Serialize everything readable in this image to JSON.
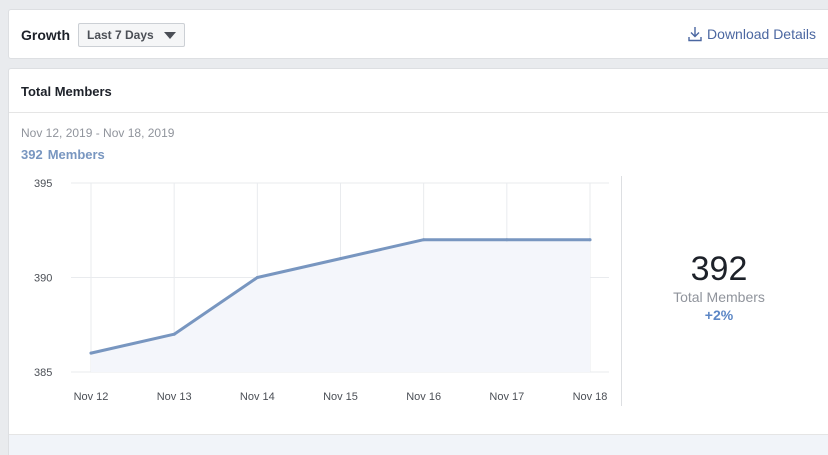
{
  "header": {
    "title": "Growth",
    "range_selected": "Last 7 Days",
    "download_label": "Download Details"
  },
  "card": {
    "title": "Total Members",
    "date_range": "Nov 12, 2019 - Nov 18, 2019",
    "count_value": "392",
    "count_unit": "Members"
  },
  "summary": {
    "value": "392",
    "label": "Total Members",
    "change": "+2%"
  },
  "colors": {
    "line": "#7896c0",
    "area": "#f4f6fb",
    "grid": "#e9ebee",
    "link": "#4b67a1"
  },
  "icons": {
    "download": "download-icon",
    "caret": "caret-down-icon"
  },
  "chart_data": {
    "type": "area",
    "categories": [
      "Nov 12",
      "Nov 13",
      "Nov 14",
      "Nov 15",
      "Nov 16",
      "Nov 17",
      "Nov 18"
    ],
    "values": [
      386,
      387,
      390,
      391,
      392,
      392,
      392
    ],
    "y_ticks": [
      "395",
      "390",
      "385"
    ],
    "ylim": [
      385,
      395
    ],
    "grid": true
  }
}
